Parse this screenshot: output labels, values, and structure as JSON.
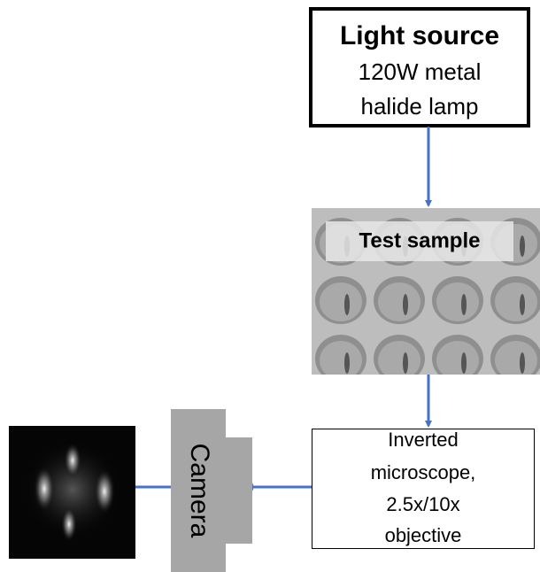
{
  "nodes": [
    {
      "title": "Light source",
      "lines": [
        "120W metal",
        "halide lamp"
      ]
    },
    {
      "title": "Test sample"
    },
    {
      "lines": [
        "Inverted",
        "microscope,",
        "2.5x/10x",
        "objective"
      ]
    },
    {
      "title": "Camera"
    }
  ]
}
